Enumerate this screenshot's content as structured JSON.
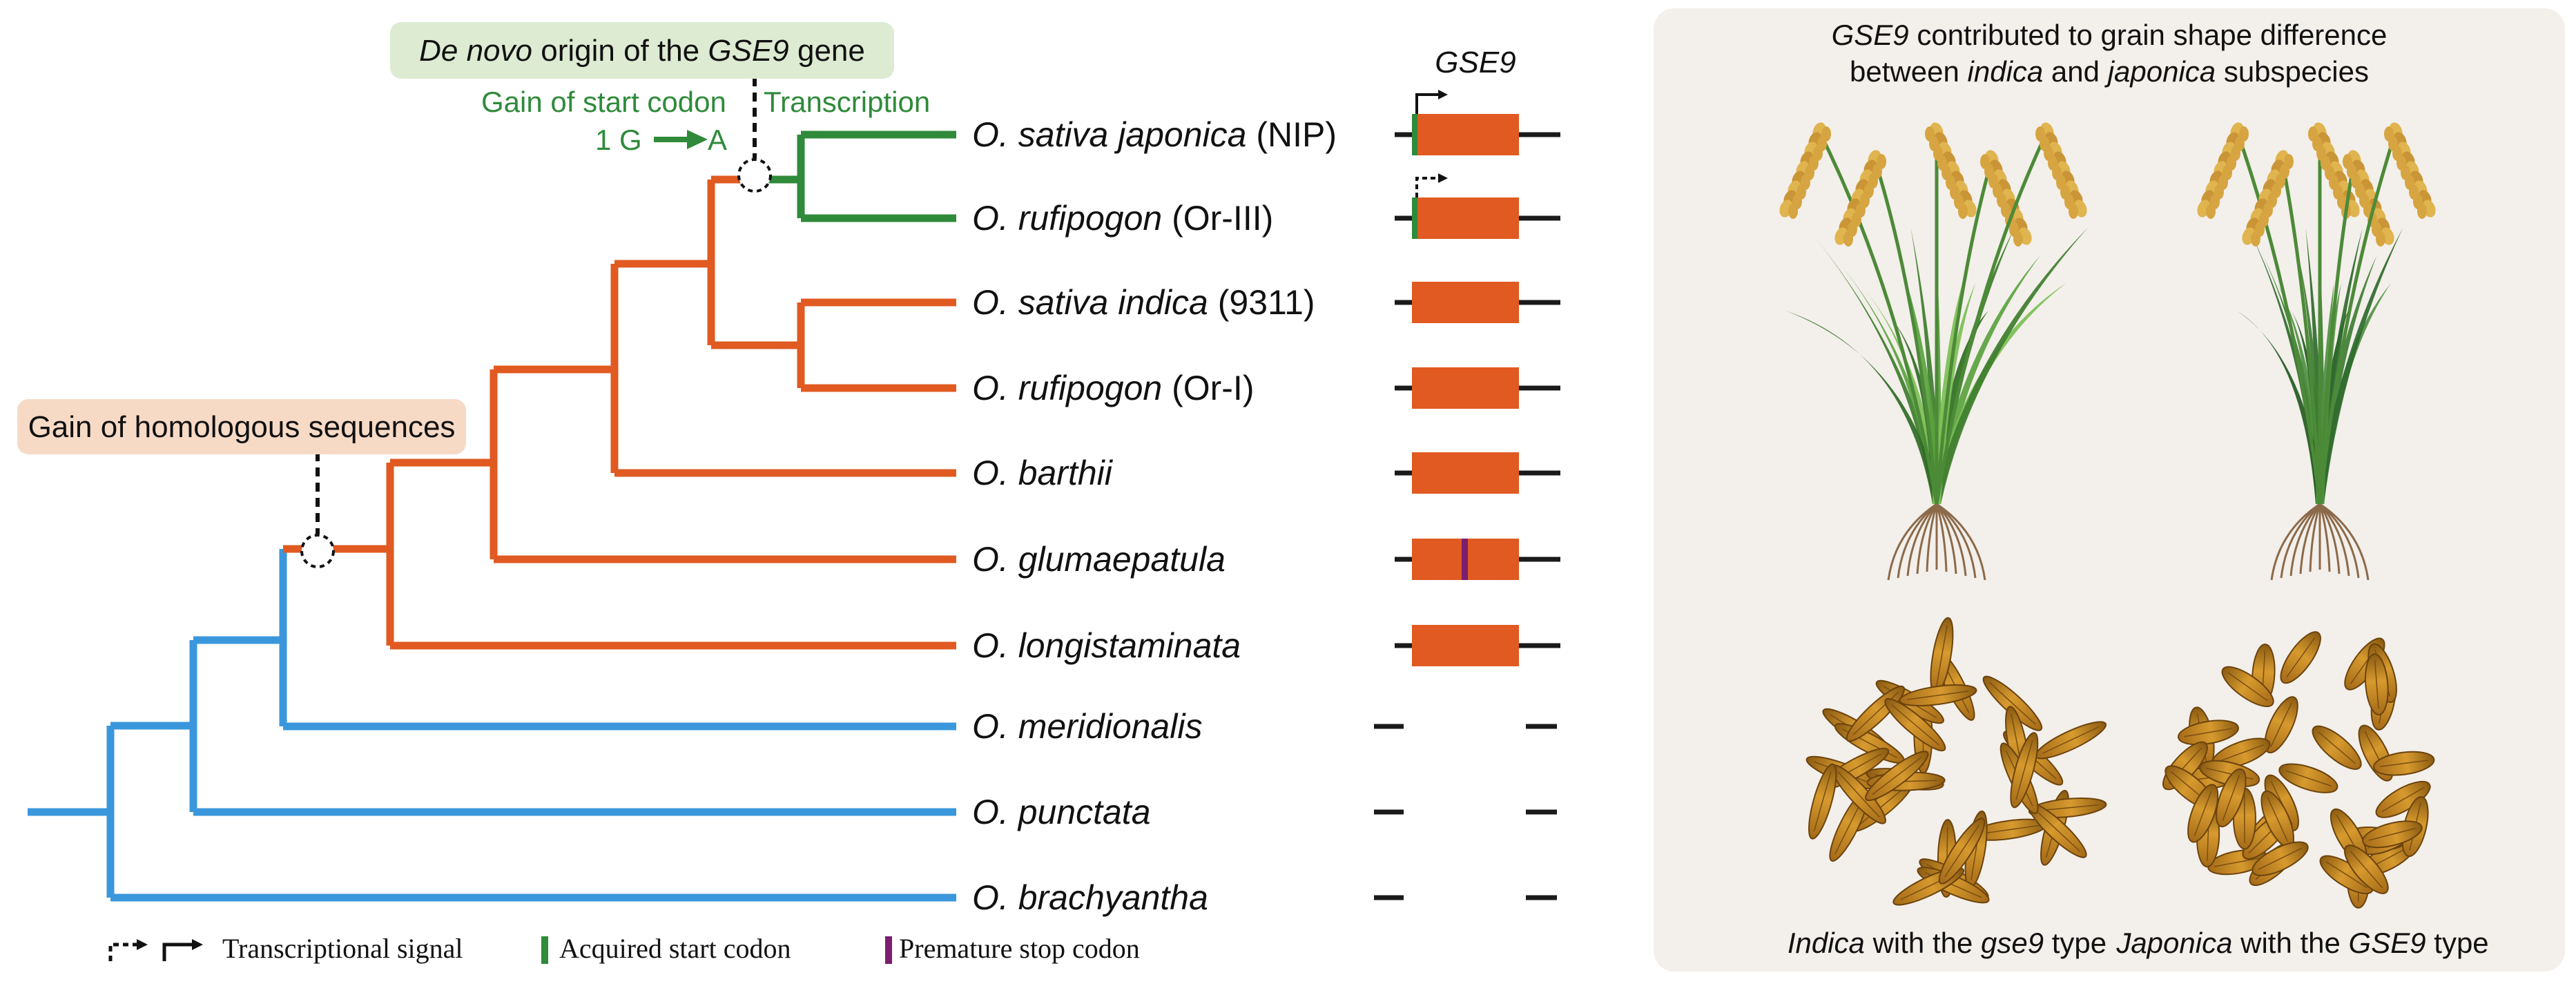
{
  "colors": {
    "orange": "#e05a21",
    "blue": "#3a97dc",
    "green": "#2f8a3a",
    "purple": "#7b1e6e",
    "line": "#1a1a1a",
    "callout_green_bg": "#dcebd2",
    "callout_orange_bg": "#f7dac6",
    "panel_bg": "#f3efea"
  },
  "annotations": {
    "denovo": {
      "prefix": "De novo",
      "middle": " origin of the ",
      "gene": "GSE9",
      "suffix": " gene"
    },
    "gain_start_codon": "Gain of start codon",
    "transcription": "Transcription",
    "mutation_from": "1 G",
    "mutation_to": "A",
    "gain_homologous": "Gain of homologous sequences"
  },
  "gene_header": "GSE9",
  "species": [
    {
      "genus": "O.",
      "name": "sativa japonica",
      "tag": "(NIP)",
      "lineage": "green",
      "gene": "full",
      "start_codon": true,
      "transcription": "solid",
      "stop_codon": false
    },
    {
      "genus": "O.",
      "name": "rufipogon",
      "tag": "(Or-III)",
      "lineage": "green",
      "gene": "full",
      "start_codon": true,
      "transcription": "dashed",
      "stop_codon": false
    },
    {
      "genus": "O.",
      "name": "sativa indica",
      "tag": "(9311)",
      "lineage": "orange",
      "gene": "full",
      "start_codon": false,
      "transcription": "none",
      "stop_codon": false
    },
    {
      "genus": "O.",
      "name": "rufipogon",
      "tag": "(Or-I)",
      "lineage": "orange",
      "gene": "full",
      "start_codon": false,
      "transcription": "none",
      "stop_codon": false
    },
    {
      "genus": "O.",
      "name": "barthii",
      "tag": "",
      "lineage": "orange",
      "gene": "full",
      "start_codon": false,
      "transcription": "none",
      "stop_codon": false
    },
    {
      "genus": "O.",
      "name": "glumaepatula",
      "tag": "",
      "lineage": "orange",
      "gene": "full",
      "start_codon": false,
      "transcription": "none",
      "stop_codon": true
    },
    {
      "genus": "O.",
      "name": "longistaminata",
      "tag": "",
      "lineage": "orange",
      "gene": "full",
      "start_codon": false,
      "transcription": "none",
      "stop_codon": false
    },
    {
      "genus": "O.",
      "name": "meridionalis",
      "tag": "",
      "lineage": "blue",
      "gene": "absent",
      "start_codon": false,
      "transcription": "none",
      "stop_codon": false
    },
    {
      "genus": "O.",
      "name": "punctata",
      "tag": "",
      "lineage": "blue",
      "gene": "absent",
      "start_codon": false,
      "transcription": "none",
      "stop_codon": false
    },
    {
      "genus": "O.",
      "name": "brachyantha",
      "tag": "",
      "lineage": "blue",
      "gene": "absent",
      "start_codon": false,
      "transcription": "none",
      "stop_codon": false
    }
  ],
  "legend": {
    "transcriptional_signal": "Transcriptional signal",
    "acquired_start_codon": "Acquired start codon",
    "premature_stop_codon": "Premature stop codon"
  },
  "panel": {
    "title_gene": "GSE9",
    "title_line1_rest": " contributed to grain shape difference",
    "title_line2_pre": "between ",
    "title_indica": "indica",
    "title_mid": " and ",
    "title_japonica": "japonica",
    "title_line2_post": " subspecies",
    "caption_left_sub": "Indica",
    "caption_left_mid": " with the ",
    "caption_left_gene": "gse9",
    "caption_left_post": " type",
    "caption_right_sub": "Japonica",
    "caption_right_mid": " with the ",
    "caption_right_gene": "GSE9",
    "caption_right_post": " type"
  }
}
